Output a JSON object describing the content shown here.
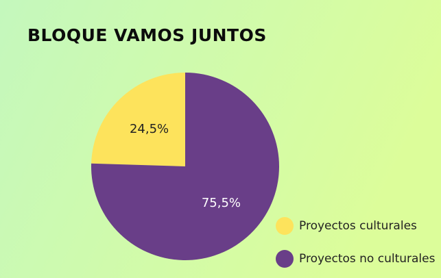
{
  "chart_data": {
    "type": "pie",
    "title": "BLOQUE VAMOS JUNTOS",
    "categories": [
      "Proyectos culturales",
      "Proyectos no culturales"
    ],
    "values": [
      24.5,
      75.5
    ],
    "value_labels": [
      "24,5%",
      "75,5%"
    ],
    "colors": [
      "#fde35c",
      "#693e88"
    ],
    "legend": "bottom-right"
  }
}
